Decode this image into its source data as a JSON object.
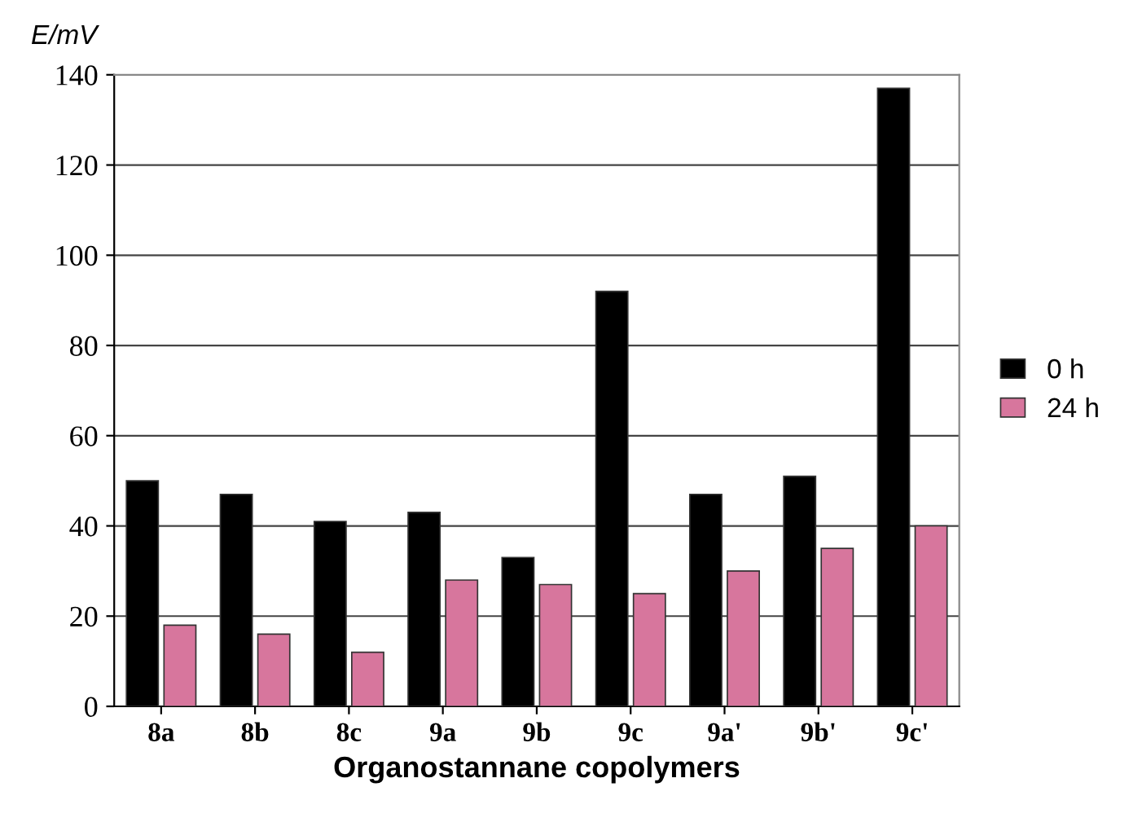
{
  "chart_data": {
    "type": "bar",
    "ylabel": "E/mV",
    "xlabel": "Organostannane copolymers",
    "categories": [
      "8a",
      "8b",
      "8c",
      "9a",
      "9b",
      "9c",
      "9a'",
      "9b'",
      "9c'"
    ],
    "series": [
      {
        "name": "0 h",
        "color": "#000000",
        "values": [
          50,
          47,
          41,
          43,
          33,
          92,
          47,
          51,
          137
        ]
      },
      {
        "name": "24 h",
        "color": "#d7769d",
        "values": [
          18,
          16,
          12,
          28,
          27,
          25,
          30,
          35,
          40
        ]
      }
    ],
    "ylim": [
      0,
      140
    ],
    "yticks": [
      0,
      20,
      40,
      60,
      80,
      100,
      120,
      140
    ],
    "grid": "y",
    "legend": "right"
  }
}
